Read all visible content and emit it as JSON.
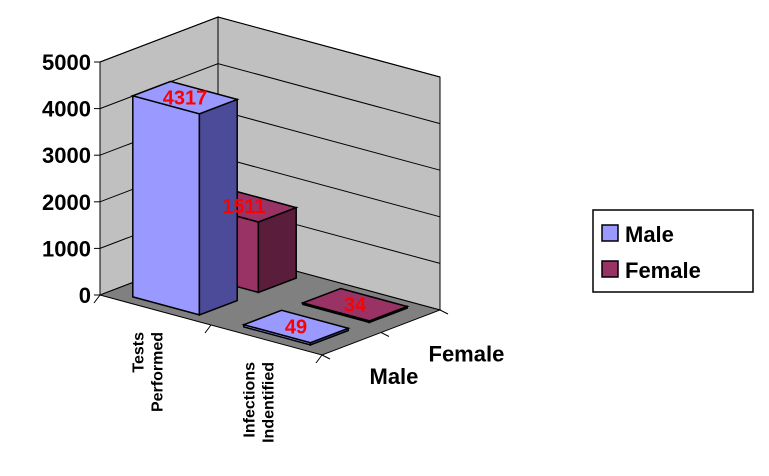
{
  "chart_data": {
    "type": "bar",
    "projection": "3d",
    "categories": [
      "Tests Performed",
      "Infections Indentified"
    ],
    "category_lines": [
      [
        "Tests",
        "Performed"
      ],
      [
        "Infections",
        "Indentified"
      ]
    ],
    "series": [
      {
        "name": "Male",
        "values": [
          4317,
          49
        ],
        "color": "#9999ff",
        "side_color": "#4b4b9a",
        "label_color": "#ff0000"
      },
      {
        "name": "Female",
        "values": [
          1511,
          34
        ],
        "color": "#993366",
        "side_color": "#5a1e3c",
        "label_color": "#ff0000"
      }
    ],
    "ylim": [
      0,
      5000
    ],
    "yticks": [
      0,
      1000,
      2000,
      3000,
      4000,
      5000
    ],
    "grid": true,
    "wall_color": "#c0c0c0",
    "floor_color": "#808080",
    "legend_position": "right"
  }
}
